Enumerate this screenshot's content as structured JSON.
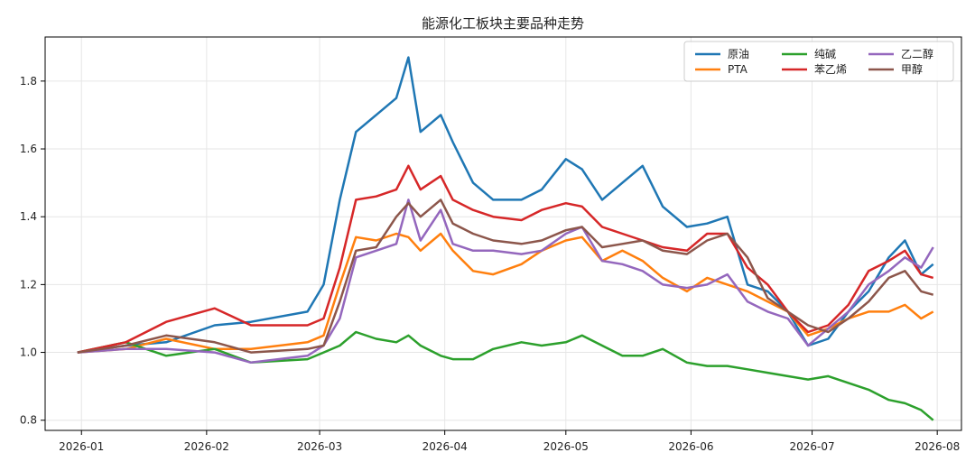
{
  "chart_data": {
    "type": "line",
    "title": "能源化工板块主要品种走势",
    "xlabel": "",
    "ylabel": "",
    "x_ticks": [
      "2026-01",
      "2026-02",
      "2026-03",
      "2026-04",
      "2026-05",
      "2026-06",
      "2026-07",
      "2026-08"
    ],
    "y_ticks": [
      "0.8",
      "1.0",
      "1.2",
      "1.4",
      "1.6",
      "1.8"
    ],
    "ylim": [
      0.77,
      1.93
    ],
    "grid": true,
    "legend_position": "top-right",
    "x_dates": [
      "2025-12-31",
      "2026-01-12",
      "2026-01-22",
      "2026-02-03",
      "2026-02-12",
      "2026-02-26",
      "2026-03-02",
      "2026-03-06",
      "2026-03-10",
      "2026-03-15",
      "2026-03-20",
      "2026-03-23",
      "2026-03-26",
      "2026-03-31",
      "2026-04-03",
      "2026-04-08",
      "2026-04-13",
      "2026-04-20",
      "2026-04-25",
      "2026-05-01",
      "2026-05-05",
      "2026-05-10",
      "2026-05-15",
      "2026-05-20",
      "2026-05-25",
      "2026-05-31",
      "2026-06-05",
      "2026-06-10",
      "2026-06-15",
      "2026-06-20",
      "2026-06-25",
      "2026-06-30",
      "2026-07-05",
      "2026-07-10",
      "2026-07-15",
      "2026-07-20",
      "2026-07-24",
      "2026-07-28",
      "2026-07-31"
    ],
    "series": [
      {
        "name": "原油",
        "color": "#1f77b4",
        "values": [
          1.0,
          1.02,
          1.03,
          1.08,
          1.09,
          1.12,
          1.2,
          1.45,
          1.65,
          1.7,
          1.75,
          1.87,
          1.65,
          1.7,
          1.62,
          1.5,
          1.45,
          1.45,
          1.48,
          1.57,
          1.54,
          1.45,
          1.5,
          1.55,
          1.43,
          1.37,
          1.38,
          1.4,
          1.2,
          1.18,
          1.12,
          1.02,
          1.04,
          1.12,
          1.18,
          1.28,
          1.33,
          1.23,
          1.26
        ]
      },
      {
        "name": "PTA",
        "color": "#ff7f0e",
        "values": [
          1.0,
          1.01,
          1.04,
          1.01,
          1.01,
          1.03,
          1.05,
          1.2,
          1.34,
          1.33,
          1.35,
          1.34,
          1.3,
          1.35,
          1.3,
          1.24,
          1.23,
          1.26,
          1.3,
          1.33,
          1.34,
          1.27,
          1.3,
          1.27,
          1.22,
          1.18,
          1.22,
          1.2,
          1.18,
          1.15,
          1.12,
          1.05,
          1.07,
          1.1,
          1.12,
          1.12,
          1.14,
          1.1,
          1.12
        ]
      },
      {
        "name": "纯碱",
        "color": "#2ca02c",
        "values": [
          1.0,
          1.03,
          0.99,
          1.01,
          0.97,
          0.98,
          1.0,
          1.02,
          1.06,
          1.04,
          1.03,
          1.05,
          1.02,
          0.99,
          0.98,
          0.98,
          1.01,
          1.03,
          1.02,
          1.03,
          1.05,
          1.02,
          0.99,
          0.99,
          1.01,
          0.97,
          0.96,
          0.96,
          0.95,
          0.94,
          0.93,
          0.92,
          0.93,
          0.91,
          0.89,
          0.86,
          0.85,
          0.83,
          0.8
        ]
      },
      {
        "name": "苯乙烯",
        "color": "#d62728",
        "values": [
          1.0,
          1.03,
          1.09,
          1.13,
          1.08,
          1.08,
          1.1,
          1.25,
          1.45,
          1.46,
          1.48,
          1.55,
          1.48,
          1.52,
          1.45,
          1.42,
          1.4,
          1.39,
          1.42,
          1.44,
          1.43,
          1.37,
          1.35,
          1.33,
          1.31,
          1.3,
          1.35,
          1.35,
          1.25,
          1.2,
          1.12,
          1.06,
          1.08,
          1.14,
          1.24,
          1.27,
          1.3,
          1.23,
          1.22
        ]
      },
      {
        "name": "乙二醇",
        "color": "#9467bd",
        "values": [
          1.0,
          1.01,
          1.01,
          1.0,
          0.97,
          0.99,
          1.02,
          1.1,
          1.28,
          1.3,
          1.32,
          1.45,
          1.33,
          1.42,
          1.32,
          1.3,
          1.3,
          1.29,
          1.3,
          1.35,
          1.37,
          1.27,
          1.26,
          1.24,
          1.2,
          1.19,
          1.2,
          1.23,
          1.15,
          1.12,
          1.1,
          1.02,
          1.07,
          1.12,
          1.2,
          1.24,
          1.28,
          1.25,
          1.31
        ]
      },
      {
        "name": "甲醇",
        "color": "#8c564b",
        "values": [
          1.0,
          1.02,
          1.05,
          1.03,
          1.0,
          1.01,
          1.02,
          1.15,
          1.3,
          1.31,
          1.4,
          1.44,
          1.4,
          1.45,
          1.38,
          1.35,
          1.33,
          1.32,
          1.33,
          1.36,
          1.37,
          1.31,
          1.32,
          1.33,
          1.3,
          1.29,
          1.33,
          1.35,
          1.28,
          1.16,
          1.12,
          1.08,
          1.06,
          1.1,
          1.15,
          1.22,
          1.24,
          1.18,
          1.17
        ]
      }
    ]
  }
}
